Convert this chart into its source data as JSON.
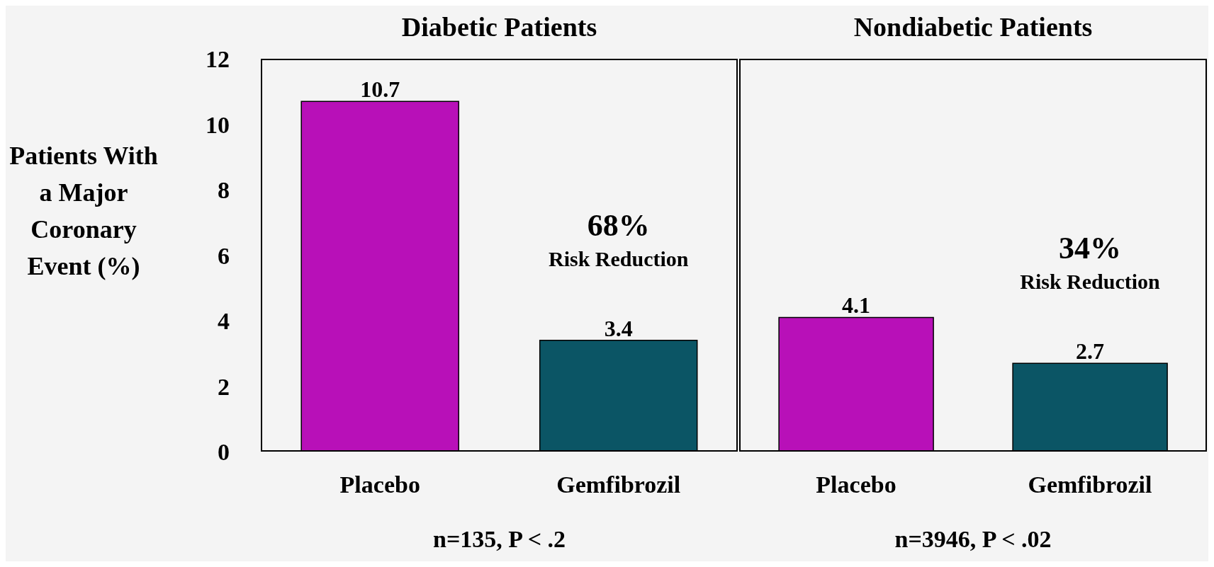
{
  "chart_data": [
    {
      "type": "bar",
      "title": "Diabetic Patients",
      "ylabel": "Patients With a Major Coronary Event (%)",
      "categories": [
        "Placebo",
        "Gemfibrozil"
      ],
      "values": [
        10.7,
        3.4
      ],
      "colors": [
        "#b810b8",
        "#0b5565"
      ],
      "ylim": [
        0,
        12
      ],
      "yticks": [
        0,
        2,
        4,
        6,
        8,
        10,
        12
      ],
      "data_labels": true,
      "annotations": [
        "68%",
        "Risk Reduction",
        "n=135, P < .2"
      ]
    },
    {
      "type": "bar",
      "title": "Nondiabetic Patients",
      "categories": [
        "Placebo",
        "Gemfibrozil"
      ],
      "values": [
        4.1,
        2.7
      ],
      "colors": [
        "#b810b8",
        "#0b5565"
      ],
      "ylim": [
        0,
        12
      ],
      "yticks": [
        0,
        2,
        4,
        6,
        8,
        10,
        12
      ],
      "tick_labels": "x",
      "data_labels": true,
      "annotations": [
        "34%",
        "Risk Reduction",
        "n=3946, P < .02"
      ]
    }
  ]
}
